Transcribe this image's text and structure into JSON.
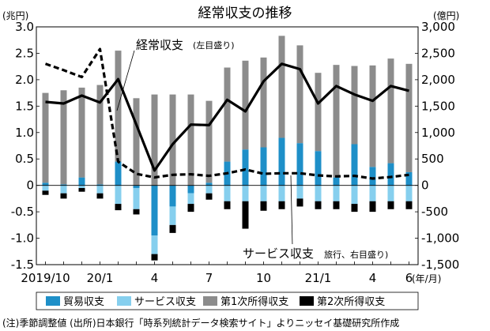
{
  "chart_data": {
    "type": "bar",
    "title": "経常収支の推移",
    "left_unit": "(兆円)",
    "right_unit": "(億円)",
    "x_unit": "(年/月)",
    "left_ylim": [
      -1.5,
      3.0
    ],
    "right_ylim": [
      -1500,
      3000
    ],
    "left_ticks": [
      "3.0",
      "2.5",
      "2.0",
      "1.5",
      "1.0",
      "0.5",
      "0",
      "-0.5",
      "-1.0",
      "-1.5"
    ],
    "right_ticks": [
      "3,000",
      "2,500",
      "2,000",
      "1,500",
      "1,000",
      "500",
      "0",
      "-500",
      "-1,000",
      "-1,500"
    ],
    "x_tick_labels": [
      {
        "index": 0,
        "label": "2019/10"
      },
      {
        "index": 3,
        "label": "20/1"
      },
      {
        "index": 6,
        "label": "4"
      },
      {
        "index": 9,
        "label": "7"
      },
      {
        "index": 12,
        "label": "10"
      },
      {
        "index": 15,
        "label": "21/1"
      },
      {
        "index": 18,
        "label": "4"
      },
      {
        "index": 20,
        "label": "6"
      }
    ],
    "categories": [
      "2019/10",
      "2019/11",
      "2019/12",
      "2020/1",
      "2020/2",
      "2020/3",
      "2020/4",
      "2020/5",
      "2020/6",
      "2020/7",
      "2020/8",
      "2020/9",
      "2020/10",
      "2020/11",
      "2020/12",
      "2021/1",
      "2021/2",
      "2021/3",
      "2021/4",
      "2021/5",
      "2021/6"
    ],
    "stacked_series": [
      {
        "name": "貿易収支",
        "color": "#1e8fc8",
        "values": [
          0.05,
          0.02,
          0.15,
          0.02,
          0.45,
          -0.05,
          -0.95,
          -0.4,
          -0.15,
          0.05,
          0.45,
          0.68,
          0.72,
          0.9,
          0.8,
          0.65,
          0.15,
          0.78,
          0.35,
          0.42,
          0.25
        ]
      },
      {
        "name": "サービス収支",
        "color": "#86cfee",
        "values": [
          -0.1,
          -0.15,
          -0.05,
          -0.15,
          -0.35,
          -0.4,
          -0.35,
          -0.35,
          -0.2,
          -0.15,
          -0.3,
          -0.3,
          -0.3,
          -0.3,
          -0.25,
          -0.3,
          -0.3,
          -0.35,
          -0.3,
          -0.3,
          -0.3
        ]
      },
      {
        "name": "第1次所得収支",
        "color": "#8c8c8c",
        "values": [
          1.7,
          1.78,
          1.7,
          1.88,
          2.1,
          1.65,
          1.72,
          1.72,
          1.72,
          1.55,
          1.78,
          1.68,
          1.7,
          1.93,
          1.85,
          1.48,
          2.13,
          1.48,
          1.92,
          1.98,
          2.05
        ]
      },
      {
        "name": "第2次所得収支",
        "color": "#000000",
        "values": [
          -0.08,
          -0.1,
          -0.07,
          -0.1,
          -0.12,
          -0.1,
          -0.12,
          -0.15,
          -0.15,
          -0.12,
          -0.15,
          -0.52,
          -0.18,
          -0.15,
          -0.15,
          -0.15,
          -0.15,
          -0.15,
          -0.2,
          -0.15,
          -0.15
        ]
      }
    ],
    "line_series": [
      {
        "name": "経常収支",
        "label": "経常収支",
        "label_note": "(左目盛り)",
        "axis": "left",
        "style": "solid",
        "color": "#000000",
        "values": [
          1.58,
          1.55,
          1.7,
          1.57,
          2.01,
          1.15,
          0.28,
          0.78,
          1.15,
          1.14,
          1.62,
          1.4,
          1.97,
          2.3,
          2.2,
          1.55,
          1.88,
          1.72,
          1.6,
          1.88,
          1.79
        ]
      },
      {
        "name": "サービス収支",
        "label": "サービス収支",
        "label_note": "(旅行、右目盛り)",
        "axis": "right",
        "style": "dashed",
        "color": "#000000",
        "values": [
          2300,
          2180,
          2050,
          2580,
          450,
          220,
          150,
          200,
          210,
          180,
          230,
          300,
          220,
          230,
          230,
          190,
          170,
          180,
          130,
          160,
          200
        ]
      }
    ],
    "annotations": {
      "current_account_label": "経常収支",
      "current_account_note": "(左目盛り)",
      "services_label": "サービス収支",
      "services_note": "旅行、右目盛り)"
    }
  },
  "legend": [
    {
      "label": "貿易収支",
      "color": "#1e8fc8"
    },
    {
      "label": "サービス収支",
      "color": "#86cfee"
    },
    {
      "label": "第1次所得収支",
      "color": "#8c8c8c"
    },
    {
      "label": "第2次所得収支",
      "color": "#000000"
    }
  ],
  "footnote": "(注)季節調整値 (出所)日本銀行「時系列統計データ検索サイト」よりニッセイ基礎研究所作成"
}
